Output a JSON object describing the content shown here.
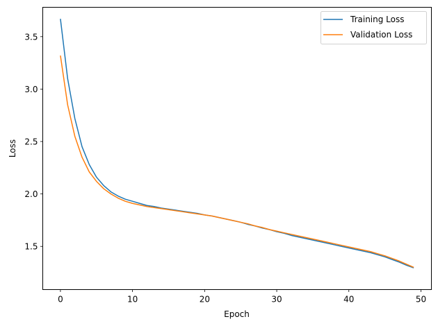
{
  "chart_data": {
    "type": "line",
    "title": "",
    "xlabel": "Epoch",
    "ylabel": "Loss",
    "xlim": [
      -2.45,
      51.45
    ],
    "ylim": [
      1.088,
      3.78
    ],
    "xticks": [
      0,
      10,
      20,
      30,
      40,
      50
    ],
    "xtick_labels": [
      "0",
      "10",
      "20",
      "30",
      "40",
      "50"
    ],
    "yticks": [
      1.5,
      2.0,
      2.5,
      3.0,
      3.5
    ],
    "ytick_labels": [
      "1.5",
      "2.0",
      "2.5",
      "3.0",
      "3.5"
    ],
    "grid": false,
    "legend_position": "upper right",
    "x": [
      0,
      1,
      2,
      3,
      4,
      5,
      6,
      7,
      8,
      9,
      10,
      11,
      12,
      13,
      14,
      15,
      16,
      17,
      18,
      19,
      20,
      21,
      22,
      23,
      24,
      25,
      26,
      27,
      28,
      29,
      30,
      31,
      32,
      33,
      34,
      35,
      36,
      37,
      38,
      39,
      40,
      41,
      42,
      43,
      44,
      45,
      46,
      47,
      48,
      49
    ],
    "series": [
      {
        "name": "Training Loss",
        "color": "#1f77b4",
        "values": [
          3.67,
          3.1,
          2.72,
          2.45,
          2.28,
          2.16,
          2.08,
          2.02,
          1.98,
          1.95,
          1.93,
          1.91,
          1.89,
          1.88,
          1.865,
          1.855,
          1.845,
          1.835,
          1.825,
          1.815,
          1.8,
          1.79,
          1.775,
          1.76,
          1.745,
          1.73,
          1.71,
          1.695,
          1.675,
          1.66,
          1.64,
          1.625,
          1.605,
          1.59,
          1.575,
          1.56,
          1.545,
          1.53,
          1.515,
          1.5,
          1.485,
          1.47,
          1.455,
          1.44,
          1.42,
          1.4,
          1.375,
          1.35,
          1.32,
          1.295
        ]
      },
      {
        "name": "Validation Loss",
        "color": "#ff7f0e",
        "values": [
          3.32,
          2.85,
          2.55,
          2.35,
          2.21,
          2.12,
          2.05,
          2.0,
          1.96,
          1.93,
          1.91,
          1.895,
          1.88,
          1.87,
          1.86,
          1.85,
          1.84,
          1.83,
          1.82,
          1.81,
          1.8,
          1.79,
          1.775,
          1.76,
          1.745,
          1.73,
          1.715,
          1.695,
          1.68,
          1.66,
          1.645,
          1.63,
          1.615,
          1.6,
          1.585,
          1.57,
          1.555,
          1.54,
          1.525,
          1.51,
          1.495,
          1.48,
          1.465,
          1.45,
          1.43,
          1.41,
          1.385,
          1.36,
          1.33,
          1.3
        ]
      }
    ]
  }
}
